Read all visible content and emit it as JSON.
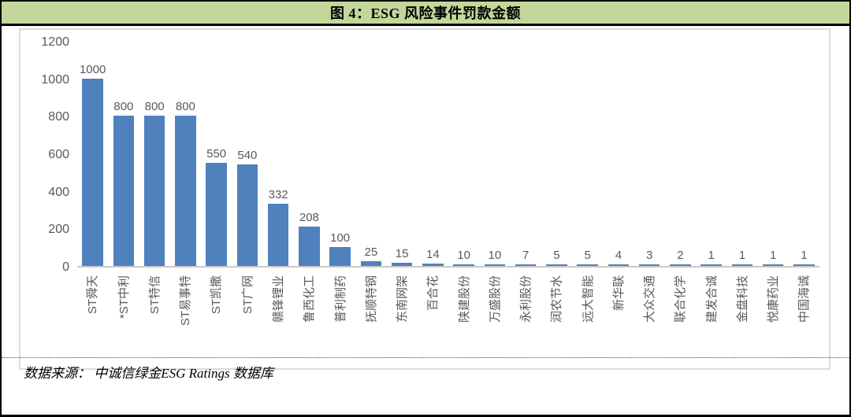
{
  "figure": {
    "title": "图 4：ESG 风险事件罚款金额",
    "source": "数据来源： 中诚信绿金ESG Ratings 数据库"
  },
  "colors": {
    "header_bg": "#c3d69b",
    "bar": "#4f81bd",
    "axis_text": "#595959",
    "border": "#000000",
    "chart_frame": "#dcdcdc"
  },
  "chart_data": {
    "type": "bar",
    "title": "图 4：ESG 风险事件罚款金额",
    "categories": [
      "ST舜天",
      "*ST中利",
      "ST特信",
      "ST易事特",
      "ST凯撒",
      "ST广网",
      "赣锋锂业",
      "鲁西化工",
      "普利制药",
      "抚顺特钢",
      "东南网架",
      "百合花",
      "陕建股份",
      "万盛股份",
      "永利股份",
      "润农节水",
      "远大智能",
      "新华联",
      "大众交通",
      "联合化学",
      "建发合诚",
      "金盘科技",
      "悦康药业",
      "中国海诚"
    ],
    "values": [
      1000,
      800,
      800,
      800,
      550,
      540,
      332,
      208,
      100,
      25,
      15,
      14,
      10,
      10,
      7,
      5,
      5,
      4,
      3,
      2,
      1,
      1,
      1,
      1
    ],
    "xlabel": "",
    "ylabel": "",
    "ylim": [
      0,
      1200
    ],
    "yticks": [
      0,
      200,
      400,
      600,
      800,
      1000,
      1200
    ],
    "grid": false,
    "legend": false,
    "data_labels": true,
    "bar_color": "#4f81bd"
  }
}
